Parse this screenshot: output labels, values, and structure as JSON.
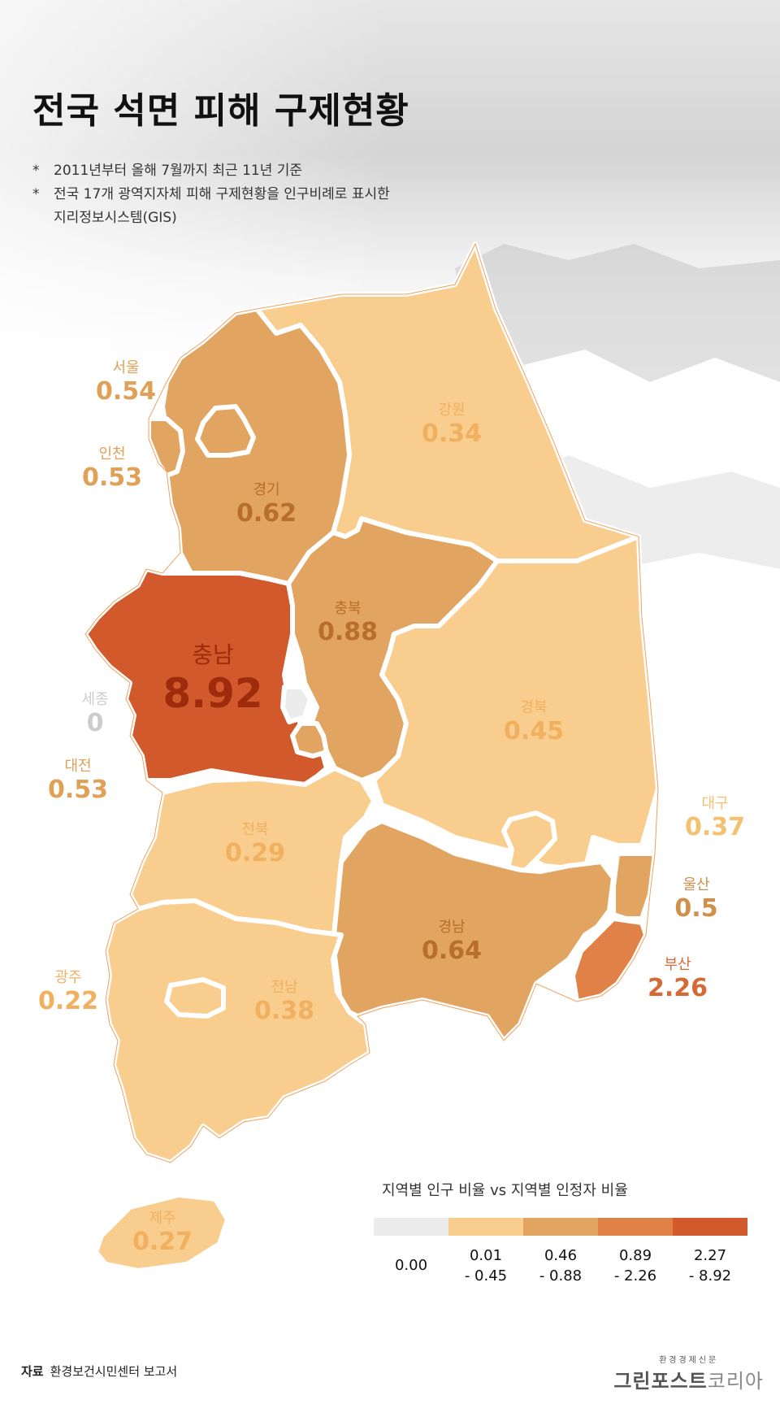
{
  "title": "전국 석면 피해 구제현황",
  "notes": [
    "2011년부터 올해 7월까지 최근 11년 기준",
    "전국 17개 광역지자체 피해 구제현황을 인구비례로 표시한",
    "지리정보시스템(GIS)"
  ],
  "note_marker": "*",
  "colors": {
    "c0": "#ececec",
    "c1": "#f9cd8e",
    "c2": "#e1a461",
    "c3": "#e08148",
    "c4": "#d1592b",
    "label_c1": "#f0b66c",
    "label_c2": "#c87f39",
    "label_c3": "#d66a37",
    "label_c4": "#a8300f",
    "label_c0": "#d0d0d0"
  },
  "regions": {
    "seoul": {
      "name": "서울",
      "value": "0.54"
    },
    "incheon": {
      "name": "인천",
      "value": "0.53"
    },
    "gyeonggi": {
      "name": "경기",
      "value": "0.62"
    },
    "gangwon": {
      "name": "강원",
      "value": "0.34"
    },
    "chungbuk": {
      "name": "충북",
      "value": "0.88"
    },
    "chungnam": {
      "name": "충남",
      "value": "8.92"
    },
    "sejong": {
      "name": "세종",
      "value": "0"
    },
    "daejeon": {
      "name": "대전",
      "value": "0.53"
    },
    "gyeongbuk": {
      "name": "경북",
      "value": "0.45"
    },
    "daegu": {
      "name": "대구",
      "value": "0.37"
    },
    "jeonbuk": {
      "name": "전북",
      "value": "0.29"
    },
    "ulsan": {
      "name": "울산",
      "value": "0.5"
    },
    "gyeongnam": {
      "name": "경남",
      "value": "0.64"
    },
    "busan": {
      "name": "부산",
      "value": "2.26"
    },
    "gwangju": {
      "name": "광주",
      "value": "0.22"
    },
    "jeonnam": {
      "name": "전남",
      "value": "0.38"
    },
    "jeju": {
      "name": "제주",
      "value": "0.27"
    }
  },
  "legend": {
    "title": "지역별 인구 비율 vs 지역별 인정자 비율",
    "bins": [
      {
        "line1": "0.00",
        "line2": ""
      },
      {
        "line1": "0.01",
        "line2": "- 0.45"
      },
      {
        "line1": "0.46",
        "line2": "- 0.88"
      },
      {
        "line1": "0.89",
        "line2": "- 2.26"
      },
      {
        "line1": "2.27",
        "line2": "- 8.92"
      }
    ]
  },
  "source": {
    "label": "자료",
    "text": "환경보건시민센터 보고서"
  },
  "brand": {
    "sub": "환경경제신문",
    "main": "그린포스트",
    "suffix": "코리아"
  }
}
